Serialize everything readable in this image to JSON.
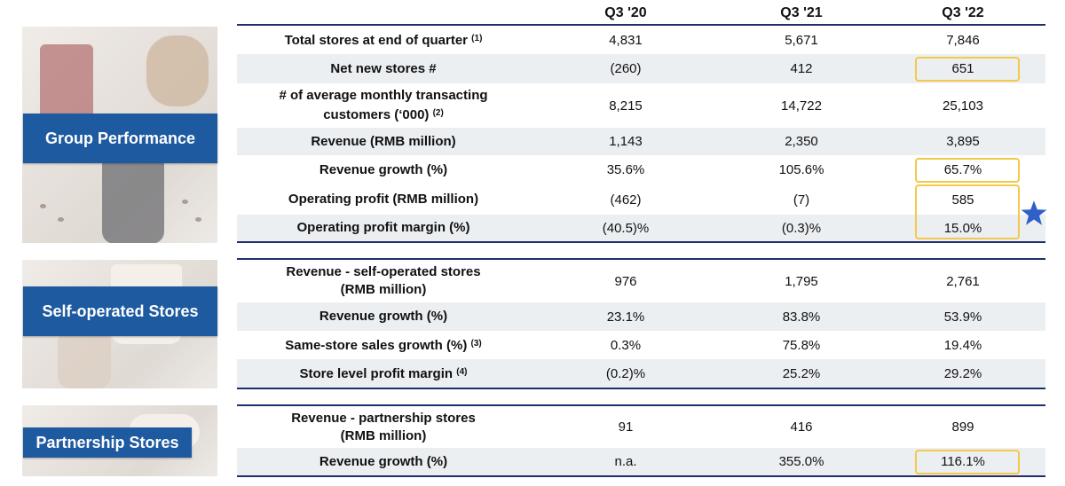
{
  "columns": [
    "Q3 '20",
    "Q3 '21",
    "Q3 '22"
  ],
  "sections": [
    {
      "label": "Group Performance",
      "rows": [
        {
          "metric": "Total stores at end of quarter",
          "note": "(1)",
          "values": [
            "4,831",
            "5,671",
            "7,846"
          ]
        },
        {
          "metric": "Net new stores #",
          "note": "",
          "values": [
            "(260)",
            "412",
            "651"
          ]
        },
        {
          "metric": "# of average monthly transacting",
          "metric2": "customers (‘000)",
          "note": "(2)",
          "values": [
            "8,215",
            "14,722",
            "25,103"
          ]
        },
        {
          "metric": "Revenue (RMB million)",
          "note": "",
          "values": [
            "1,143",
            "2,350",
            "3,895"
          ]
        },
        {
          "metric": "Revenue growth (%)",
          "note": "",
          "values": [
            "35.6%",
            "105.6%",
            "65.7%"
          ]
        },
        {
          "metric": "Operating profit (RMB million)",
          "note": "",
          "values": [
            "(462)",
            "(7)",
            "585"
          ]
        },
        {
          "metric": "Operating profit margin (%)",
          "note": "",
          "values": [
            "(40.5)%",
            "(0.3)%",
            "15.0%"
          ]
        }
      ]
    },
    {
      "label": "Self-operated Stores",
      "rows": [
        {
          "metric": "Revenue - self-operated stores",
          "metric2": "(RMB million)",
          "note": "",
          "values": [
            "976",
            "1,795",
            "2,761"
          ]
        },
        {
          "metric": "Revenue growth (%)",
          "note": "",
          "values": [
            "23.1%",
            "83.8%",
            "53.9%"
          ]
        },
        {
          "metric": "Same-store sales growth (%)",
          "note": "(3)",
          "values": [
            "0.3%",
            "75.8%",
            "19.4%"
          ]
        },
        {
          "metric": "Store level profit margin",
          "note": "(4)",
          "values": [
            "(0.2)%",
            "25.2%",
            "29.2%"
          ]
        }
      ]
    },
    {
      "label": "Partnership Stores",
      "rows": [
        {
          "metric": "Revenue - partnership stores",
          "metric2": "(RMB million)",
          "note": "",
          "values": [
            "91",
            "416",
            "899"
          ]
        },
        {
          "metric": "Revenue growth (%)",
          "note": "",
          "values": [
            "n.a.",
            "355.0%",
            "116.1%"
          ]
        }
      ]
    }
  ],
  "highlight_color": "#f4c84a",
  "label_color": "#1e5aa0",
  "rule_color": "#1f2f6e",
  "star_icon": "star-icon",
  "star_color": "#2f5fc9"
}
